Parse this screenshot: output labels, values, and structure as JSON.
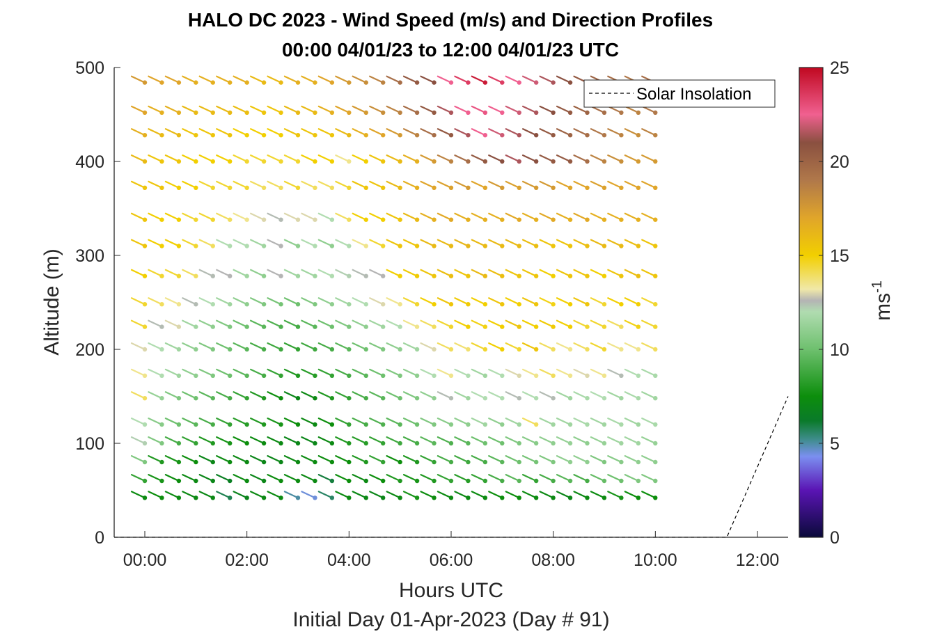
{
  "chart_data": {
    "type": "wind-barb-profile",
    "title_line1": "HALO DC 2023 - Wind Speed (m/s) and Direction Profiles",
    "title_line2": "00:00 04/01/23 to 12:00 04/01/23  UTC",
    "xlabel": "Hours UTC",
    "xlabel2": "Initial Day 01-Apr-2023 (Day # 91)",
    "ylabel": "Altitude (m)",
    "colorbar_label": "ms",
    "colorbar_label_exp": "-1",
    "xlim_hours": [
      -0.6,
      12.6
    ],
    "ylim": [
      0,
      500
    ],
    "x_ticks": [
      {
        "value": 0,
        "label": "00:00"
      },
      {
        "value": 2,
        "label": "02:00"
      },
      {
        "value": 4,
        "label": "04:00"
      },
      {
        "value": 6,
        "label": "06:00"
      },
      {
        "value": 8,
        "label": "08:00"
      },
      {
        "value": 10,
        "label": "10:00"
      },
      {
        "value": 12,
        "label": "12:00"
      }
    ],
    "y_ticks": [
      {
        "value": 0,
        "label": "0"
      },
      {
        "value": 100,
        "label": "100"
      },
      {
        "value": 200,
        "label": "200"
      },
      {
        "value": 300,
        "label": "300"
      },
      {
        "value": 400,
        "label": "400"
      },
      {
        "value": 500,
        "label": "500"
      }
    ],
    "colorbar": {
      "range": [
        0,
        25
      ],
      "ticks": [
        {
          "value": 0,
          "label": "0"
        },
        {
          "value": 5,
          "label": "5"
        },
        {
          "value": 10,
          "label": "10"
        },
        {
          "value": 15,
          "label": "15"
        },
        {
          "value": 20,
          "label": "20"
        },
        {
          "value": 25,
          "label": "25"
        }
      ],
      "stops": [
        {
          "v": 0,
          "c": "#0a0a3a"
        },
        {
          "v": 2.5,
          "c": "#5a14b4"
        },
        {
          "v": 4.3,
          "c": "#7b8ff0"
        },
        {
          "v": 5.2,
          "c": "#3f8d8d"
        },
        {
          "v": 6.2,
          "c": "#0a7a2a"
        },
        {
          "v": 7.5,
          "c": "#0c8e0c"
        },
        {
          "v": 10,
          "c": "#6ec06e"
        },
        {
          "v": 12,
          "c": "#b0dcb0"
        },
        {
          "v": 12.6,
          "c": "#b4b4b4"
        },
        {
          "v": 13.2,
          "c": "#f0e8a8"
        },
        {
          "v": 15,
          "c": "#f2cf00"
        },
        {
          "v": 17,
          "c": "#e0a52a"
        },
        {
          "v": 19,
          "c": "#b0784a"
        },
        {
          "v": 21,
          "c": "#8a5040"
        },
        {
          "v": 22.5,
          "c": "#f06090"
        },
        {
          "v": 25,
          "c": "#c00820"
        }
      ]
    },
    "legend": {
      "entry": "Solar Insolation",
      "location": "top-right"
    },
    "time_step_hours": 0.3333,
    "first_time_hours": 0,
    "levels_m": [
      42,
      60,
      80,
      100,
      120,
      148,
      172,
      200,
      224,
      248,
      278,
      310,
      338,
      372,
      400,
      428,
      452,
      484
    ],
    "barb_direction_deg": 245,
    "speed_grid": [
      [
        7.3,
        7.5,
        7.3,
        7.2,
        7.1,
        5.8,
        6.8,
        7.2,
        7.3,
        5.0,
        4.5,
        5.6,
        7.3,
        7.1,
        7.0,
        7.2,
        7.8,
        7.4,
        7.3,
        7.2,
        7.3,
        7.5,
        7.5,
        7.3,
        7.2,
        7.0,
        7.2,
        7.3,
        7.8,
        7.5,
        7.5
      ],
      [
        8.5,
        7.8,
        7.4,
        7.2,
        7.0,
        6.5,
        7.3,
        7.0,
        7.4,
        7.3,
        7.2,
        6.0,
        7.5,
        7.2,
        7.5,
        8.0,
        7.8,
        8.0,
        8.5,
        8.2,
        8.5,
        9.0,
        9.5,
        8.5,
        9.0,
        9.5,
        9.0,
        9.8,
        10.0,
        10.5,
        10.5
      ],
      [
        10.5,
        8.0,
        7.8,
        7.5,
        7.0,
        7.3,
        7.2,
        7.0,
        7.0,
        7.2,
        7.3,
        7.4,
        7.5,
        8.0,
        8.5,
        7.5,
        8.0,
        8.5,
        9.0,
        8.8,
        9.0,
        9.5,
        10.0,
        10.2,
        10.5,
        11.0,
        11.0,
        10.5,
        10.8,
        11.0,
        11.0
      ],
      [
        12.2,
        10.5,
        9.0,
        8.5,
        8.0,
        7.8,
        7.5,
        7.3,
        7.2,
        7.0,
        7.0,
        7.2,
        8.0,
        8.2,
        8.5,
        8.8,
        9.0,
        9.5,
        9.2,
        9.5,
        10.0,
        10.0,
        10.5,
        10.8,
        11.0,
        11.2,
        11.0,
        11.2,
        11.5,
        11.5,
        11.2
      ],
      [
        12.0,
        10.8,
        10.0,
        9.5,
        9.0,
        8.5,
        8.2,
        8.0,
        7.8,
        7.5,
        7.2,
        7.5,
        8.5,
        9.0,
        9.2,
        9.5,
        10.0,
        10.5,
        10.8,
        11.0,
        11.5,
        11.0,
        11.5,
        14.0,
        11.5,
        11.5,
        11.8,
        11.5,
        11.8,
        11.5,
        11.8
      ],
      [
        14.0,
        11.2,
        10.5,
        10.0,
        9.5,
        9.0,
        8.5,
        8.0,
        7.5,
        7.0,
        7.2,
        8.0,
        8.5,
        9.0,
        9.5,
        10.0,
        10.5,
        11.0,
        12.5,
        11.5,
        12.0,
        12.0,
        12.5,
        12.0,
        12.5,
        11.5,
        11.8,
        12.0,
        11.5,
        11.8,
        11.5
      ],
      [
        13.5,
        12.0,
        11.5,
        11.0,
        10.5,
        10.0,
        9.5,
        9.0,
        8.5,
        8.0,
        8.2,
        8.5,
        9.0,
        9.5,
        10.0,
        10.5,
        11.0,
        12.0,
        13.5,
        12.0,
        11.5,
        12.0,
        13.0,
        13.5,
        14.0,
        13.5,
        13.0,
        13.5,
        12.5,
        12.0,
        11.8
      ],
      [
        13.0,
        12.0,
        11.5,
        11.0,
        10.5,
        10.0,
        9.5,
        9.0,
        8.8,
        8.5,
        8.8,
        9.0,
        9.5,
        10.0,
        10.5,
        11.0,
        11.5,
        13.0,
        14.0,
        13.8,
        14.5,
        15.0,
        14.5,
        15.5,
        14.0,
        13.5,
        14.0,
        14.5,
        13.5,
        13.5,
        14.0
      ],
      [
        14.5,
        12.5,
        13.0,
        11.5,
        11.0,
        10.5,
        10.0,
        9.5,
        9.2,
        9.0,
        9.5,
        10.0,
        10.5,
        11.0,
        11.5,
        12.0,
        13.5,
        14.0,
        14.5,
        15.0,
        14.8,
        15.0,
        15.5,
        15.0,
        15.2,
        15.0,
        14.5,
        14.5,
        14.0,
        14.8,
        14.5
      ],
      [
        14.5,
        14.0,
        13.5,
        12.5,
        12.0,
        11.5,
        11.0,
        10.5,
        10.2,
        10.0,
        10.5,
        11.0,
        11.5,
        12.0,
        13.0,
        13.5,
        14.5,
        15.0,
        15.5,
        15.2,
        15.0,
        15.5,
        15.0,
        15.5,
        14.8,
        15.0,
        15.5,
        14.5,
        15.0,
        15.0,
        14.5
      ],
      [
        15.0,
        14.5,
        14.5,
        14.0,
        12.5,
        12.6,
        11.5,
        11.0,
        12.6,
        11.5,
        11.5,
        12.0,
        12.2,
        12.5,
        12.6,
        15.0,
        15.2,
        15.5,
        15.8,
        15.5,
        16.0,
        15.8,
        15.5,
        15.5,
        15.0,
        15.5,
        15.5,
        15.0,
        15.5,
        15.8,
        15.5
      ],
      [
        15.5,
        15.0,
        15.0,
        14.5,
        14.0,
        12.0,
        12.0,
        11.5,
        12.6,
        11.0,
        12.0,
        11.0,
        12.0,
        13.5,
        14.5,
        15.5,
        15.5,
        16.0,
        16.0,
        16.2,
        16.0,
        16.0,
        16.0,
        15.8,
        15.5,
        15.5,
        15.8,
        16.0,
        16.0,
        15.8,
        15.5
      ],
      [
        15.5,
        15.0,
        15.0,
        14.5,
        14.5,
        14.0,
        13.5,
        13.0,
        12.5,
        13.0,
        13.0,
        12.0,
        14.0,
        15.0,
        15.0,
        15.5,
        16.0,
        16.5,
        16.8,
        16.5,
        16.5,
        16.5,
        16.8,
        16.5,
        16.8,
        16.5,
        16.8,
        16.5,
        16.5,
        16.5,
        16.5
      ],
      [
        15.5,
        15.5,
        15.0,
        15.0,
        14.5,
        14.5,
        14.5,
        14.0,
        14.0,
        14.5,
        14.0,
        14.0,
        14.5,
        15.5,
        15.5,
        16.0,
        16.5,
        17.0,
        17.2,
        17.5,
        17.0,
        17.5,
        17.2,
        17.5,
        17.5,
        17.0,
        17.0,
        17.2,
        17.0,
        17.0,
        17.0
      ],
      [
        16.0,
        15.5,
        15.5,
        15.0,
        15.0,
        15.0,
        14.5,
        14.5,
        14.5,
        14.5,
        15.0,
        15.0,
        13.5,
        15.0,
        15.5,
        16.0,
        16.5,
        17.5,
        18.5,
        19.5,
        20.5,
        21.0,
        21.5,
        21.0,
        20.5,
        20.5,
        19.5,
        18.5,
        18.0,
        17.5,
        17.5
      ],
      [
        16.5,
        16.0,
        16.0,
        15.5,
        15.5,
        15.5,
        15.0,
        15.0,
        15.0,
        15.5,
        15.5,
        15.5,
        16.0,
        16.5,
        17.0,
        17.5,
        18.5,
        19.5,
        20.5,
        21.5,
        22.5,
        22.0,
        21.5,
        21.0,
        20.5,
        20.0,
        19.5,
        19.0,
        18.5,
        18.0,
        18.5
      ],
      [
        17.0,
        16.5,
        16.5,
        16.0,
        16.0,
        16.0,
        15.8,
        15.5,
        15.5,
        16.0,
        16.0,
        16.5,
        17.0,
        17.5,
        18.0,
        18.5,
        19.5,
        20.5,
        21.5,
        22.5,
        22.8,
        22.5,
        22.0,
        21.5,
        21.0,
        20.5,
        20.0,
        19.5,
        19.0,
        18.5,
        19.0
      ],
      [
        17.5,
        17.0,
        17.0,
        16.5,
        16.5,
        16.5,
        16.5,
        16.0,
        16.0,
        16.5,
        16.5,
        17.0,
        17.5,
        18.0,
        18.5,
        19.5,
        20.5,
        21.0,
        22.5,
        23.5,
        24.5,
        23.5,
        22.5,
        22.0,
        21.5,
        21.0,
        20.5,
        20.0,
        19.5,
        19.0,
        19.5
      ]
    ],
    "solar_insolation": [
      {
        "t": -0.6,
        "y": 0
      },
      {
        "t": 11.4,
        "y": 0
      },
      {
        "t": 12.6,
        "y": 150
      }
    ]
  }
}
